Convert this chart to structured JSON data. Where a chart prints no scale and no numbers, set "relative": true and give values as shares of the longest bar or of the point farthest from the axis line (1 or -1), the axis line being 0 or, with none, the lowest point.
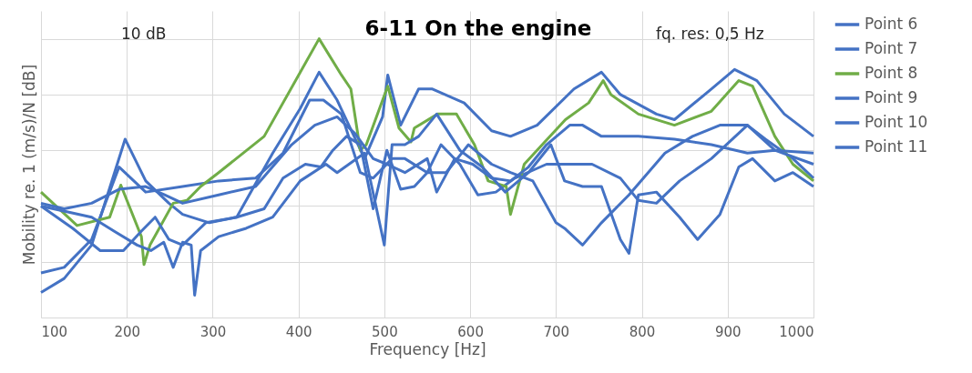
{
  "chart_data": {
    "type": "line",
    "title": "6-11 On the engine",
    "xlabel": "Frequency [Hz]",
    "ylabel": "Mobility  re. 1 (m/s)/N [dB]",
    "annotations": [
      "10 dB",
      "fq. res: 0,5 Hz"
    ],
    "relative": true,
    "xlim": [
      100,
      1000
    ],
    "xticks": [
      100,
      200,
      300,
      400,
      500,
      600,
      700,
      800,
      900,
      1000
    ],
    "grid": true,
    "legend": "right",
    "marker": "none",
    "line_style": "solid",
    "series": [
      {
        "name": "Point 6",
        "color": "#4472c4",
        "x": [
          100,
          127,
          159,
          198,
          222,
          249,
          265,
          296,
          328,
          370,
          402,
          424,
          445,
          477,
          498,
          504,
          519,
          540,
          556,
          593,
          625,
          647,
          678,
          721,
          753,
          775,
          817,
          838,
          881,
          908,
          934,
          966,
          1000
        ],
        "values": [
          0.09,
          0.14,
          0.26,
          0.64,
          0.49,
          0.41,
          0.37,
          0.34,
          0.36,
          0.59,
          0.75,
          0.88,
          0.78,
          0.57,
          0.72,
          0.87,
          0.69,
          0.82,
          0.82,
          0.77,
          0.67,
          0.65,
          0.69,
          0.82,
          0.88,
          0.8,
          0.73,
          0.71,
          0.82,
          0.89,
          0.85,
          0.73,
          0.65
        ]
      },
      {
        "name": "Point 7",
        "color": "#4472c4",
        "x": [
          100,
          127,
          159,
          191,
          222,
          265,
          307,
          350,
          382,
          413,
          429,
          450,
          472,
          487,
          509,
          524,
          550,
          566,
          588,
          609,
          630,
          652,
          689,
          721,
          742,
          775,
          796,
          817,
          844,
          881,
          923,
          944,
          976,
          1000
        ],
        "values": [
          0.16,
          0.18,
          0.28,
          0.54,
          0.45,
          0.47,
          0.49,
          0.5,
          0.59,
          0.78,
          0.78,
          0.73,
          0.52,
          0.5,
          0.57,
          0.57,
          0.52,
          0.62,
          0.55,
          0.44,
          0.45,
          0.5,
          0.55,
          0.55,
          0.55,
          0.5,
          0.42,
          0.41,
          0.49,
          0.57,
          0.69,
          0.64,
          0.57,
          0.5
        ]
      },
      {
        "name": "Point 8",
        "color": "#70ad47",
        "x": [
          100,
          142,
          180,
          193,
          217,
          220,
          227,
          254,
          270,
          286,
          307,
          360,
          402,
          424,
          450,
          461,
          472,
          479,
          498,
          504,
          517,
          531,
          535,
          562,
          584,
          605,
          621,
          642,
          647,
          663,
          684,
          711,
          738,
          755,
          764,
          796,
          838,
          881,
          913,
          929,
          955,
          976,
          1000
        ],
        "values": [
          0.45,
          0.33,
          0.36,
          0.475,
          0.29,
          0.19,
          0.26,
          0.41,
          0.42,
          0.47,
          0.52,
          0.65,
          0.88,
          1.0,
          0.87,
          0.82,
          0.6,
          0.62,
          0.78,
          0.83,
          0.68,
          0.63,
          0.68,
          0.73,
          0.73,
          0.62,
          0.49,
          0.47,
          0.37,
          0.55,
          0.62,
          0.71,
          0.77,
          0.85,
          0.8,
          0.73,
          0.69,
          0.74,
          0.85,
          0.83,
          0.65,
          0.55,
          0.49
        ]
      },
      {
        "name": "Point 9",
        "color": "#4472c4",
        "x": [
          100,
          127,
          159,
          191,
          222,
          244,
          265,
          307,
          350,
          392,
          419,
          445,
          466,
          487,
          503,
          524,
          550,
          561,
          582,
          603,
          625,
          647,
          668,
          689,
          716,
          731,
          753,
          796,
          838,
          881,
          923,
          955,
          1000
        ],
        "values": [
          0.41,
          0.39,
          0.41,
          0.46,
          0.47,
          0.44,
          0.41,
          0.44,
          0.47,
          0.62,
          0.69,
          0.72,
          0.66,
          0.57,
          0.55,
          0.52,
          0.57,
          0.45,
          0.57,
          0.55,
          0.5,
          0.49,
          0.54,
          0.62,
          0.69,
          0.69,
          0.65,
          0.65,
          0.64,
          0.62,
          0.59,
          0.6,
          0.59
        ]
      },
      {
        "name": "Point 10",
        "color": "#4472c4",
        "x": [
          100,
          159,
          185,
          212,
          228,
          243,
          254,
          265,
          275,
          279,
          286,
          307,
          339,
          370,
          402,
          432,
          445,
          477,
          500,
          509,
          524,
          540,
          561,
          588,
          614,
          641,
          668,
          694,
          710,
          731,
          753,
          775,
          785,
          796,
          817,
          844,
          865,
          891,
          913,
          929,
          955,
          976,
          1000
        ],
        "values": [
          0.4,
          0.36,
          0.31,
          0.26,
          0.24,
          0.27,
          0.18,
          0.27,
          0.26,
          0.08,
          0.24,
          0.29,
          0.32,
          0.36,
          0.49,
          0.55,
          0.52,
          0.59,
          0.26,
          0.62,
          0.62,
          0.65,
          0.73,
          0.6,
          0.54,
          0.45,
          0.52,
          0.62,
          0.49,
          0.47,
          0.47,
          0.28,
          0.23,
          0.44,
          0.45,
          0.36,
          0.28,
          0.37,
          0.54,
          0.57,
          0.49,
          0.52,
          0.47
        ]
      },
      {
        "name": "Point 11",
        "color": "#4472c4",
        "x": [
          100,
          137,
          169,
          196,
          217,
          233,
          249,
          265,
          292,
          328,
          360,
          382,
          408,
          426,
          440,
          456,
          472,
          487,
          503,
          519,
          535,
          550,
          572,
          598,
          625,
          647,
          673,
          700,
          710,
          731,
          753,
          785,
          827,
          859,
          891,
          923,
          955,
          1000
        ],
        "values": [
          0.4,
          0.32,
          0.24,
          0.24,
          0.31,
          0.36,
          0.28,
          0.26,
          0.34,
          0.36,
          0.39,
          0.5,
          0.55,
          0.54,
          0.6,
          0.65,
          0.62,
          0.39,
          0.6,
          0.46,
          0.47,
          0.52,
          0.52,
          0.62,
          0.55,
          0.52,
          0.49,
          0.34,
          0.32,
          0.26,
          0.34,
          0.44,
          0.59,
          0.65,
          0.69,
          0.69,
          0.6,
          0.55
        ]
      }
    ]
  }
}
